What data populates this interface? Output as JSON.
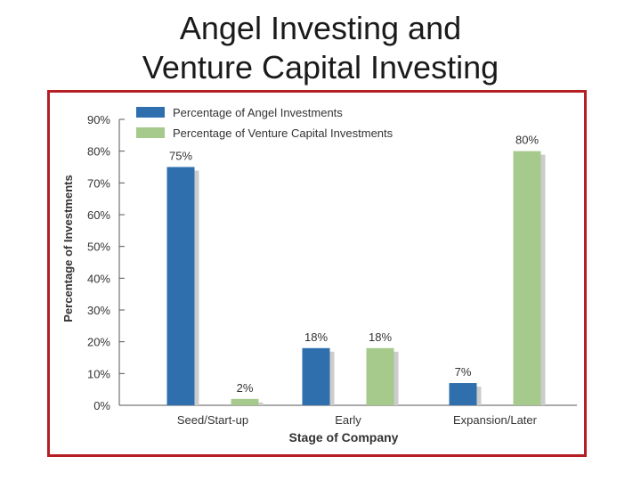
{
  "slide": {
    "title_line1": "Angel Investing and",
    "title_line2": "Venture Capital Investing"
  },
  "colors": {
    "angel": "#2f6fae",
    "venture": "#a6c98c",
    "shadow": "#cccccc",
    "frame": "#b51f24",
    "axis": "#555555"
  },
  "chart_data": {
    "type": "bar",
    "title": "",
    "xlabel": "Stage of Company",
    "ylabel": "Percentage of Investments",
    "ylim": [
      0,
      90
    ],
    "yticks": [
      "0%",
      "10%",
      "20%",
      "30%",
      "40%",
      "50%",
      "60%",
      "70%",
      "80%",
      "90%"
    ],
    "categories": [
      "Seed/Start-up",
      "Early",
      "Expansion/Later"
    ],
    "series": [
      {
        "name": "Percentage of Angel Investments",
        "values": [
          75,
          18,
          7
        ],
        "labels": [
          "75%",
          "18%",
          "7%"
        ]
      },
      {
        "name": "Percentage of Venture Capital Investments",
        "values": [
          2,
          18,
          80
        ],
        "labels": [
          "2%",
          "18%",
          "80%"
        ]
      }
    ],
    "legend": "top-left",
    "grid": false
  }
}
